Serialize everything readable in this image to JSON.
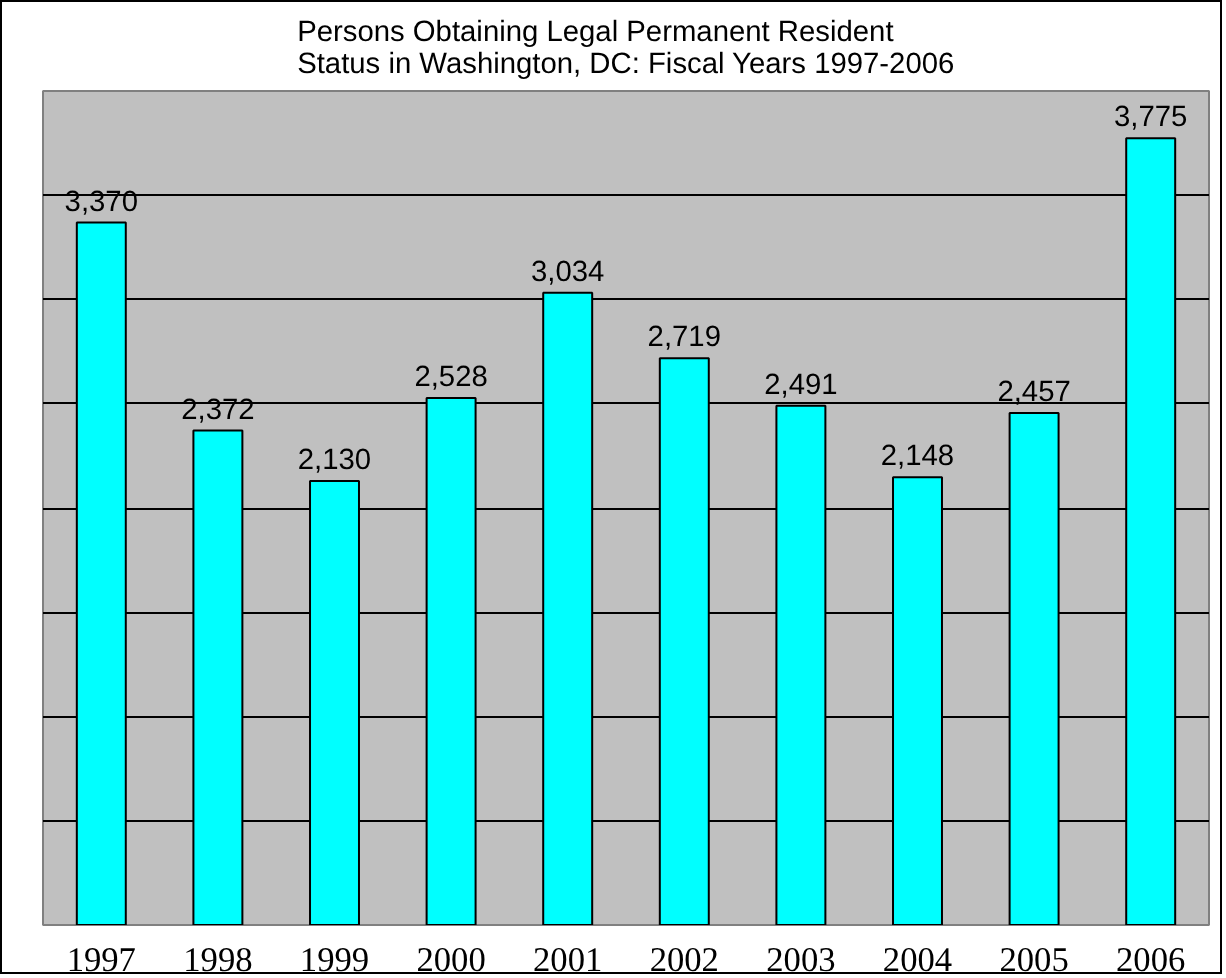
{
  "chart_data": {
    "type": "bar",
    "title": "Persons Obtaining Legal Permanent Resident\nStatus in Washington, DC: Fiscal Years 1997-2006",
    "categories": [
      "1997",
      "1998",
      "1999",
      "2000",
      "2001",
      "2002",
      "2003",
      "2004",
      "2005",
      "2006"
    ],
    "values": [
      3370,
      2372,
      2130,
      2528,
      3034,
      2719,
      2491,
      2148,
      2457,
      3775
    ],
    "value_labels": [
      "3,370",
      "2,372",
      "2,130",
      "2,528",
      "3,034",
      "2,719",
      "2,491",
      "2,148",
      "2,457",
      "3,775"
    ],
    "color": "#00ffff",
    "grid": "y",
    "tick_labels": "x"
  }
}
